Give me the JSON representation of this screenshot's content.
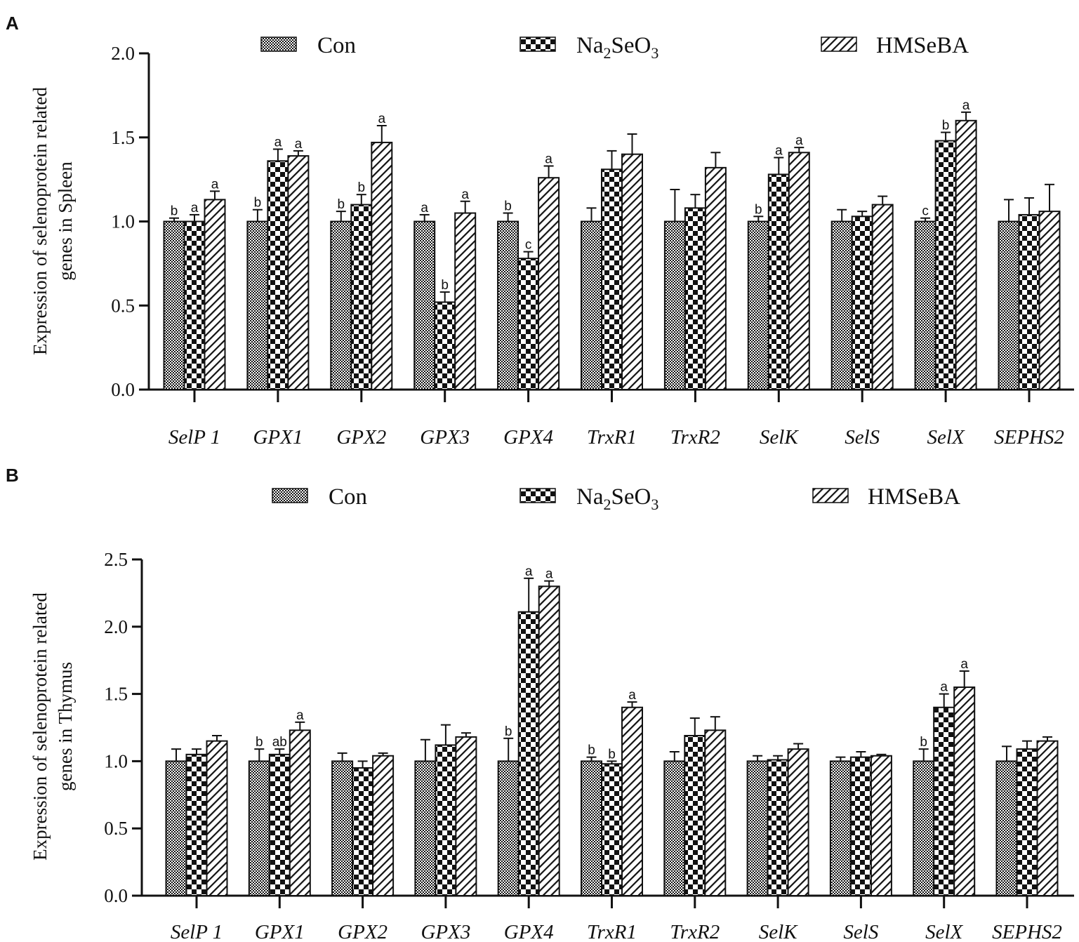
{
  "legend": {
    "con": "Con",
    "na2seo3": {
      "p1": "Na",
      "s1": "2",
      "p2": "SeO",
      "s2": "3",
      "full": "Na2SeO3"
    },
    "hmseba": "HMSeBA"
  },
  "colors": {
    "ink": "#111111",
    "background": "#ffffff"
  },
  "chart_data": [
    {
      "panel": "A",
      "type": "bar",
      "ylabel_line1": "Expression of selenoprotein related",
      "ylabel_line2": "genes in Spleen",
      "ylim": [
        0,
        2.0
      ],
      "yticks": [
        "0.0",
        "0.5",
        "1.0",
        "1.5",
        "2.0"
      ],
      "categories": [
        "SelP 1",
        "GPX1",
        "GPX2",
        "GPX3",
        "GPX4",
        "TrxR1",
        "TrxR2",
        "SelK",
        "SelS",
        "SelX",
        "SEPHS2"
      ],
      "series": [
        {
          "name": "Con",
          "pattern": "check",
          "values": [
            1.0,
            1.0,
            1.0,
            1.0,
            1.0,
            1.0,
            1.0,
            1.0,
            1.0,
            1.0,
            1.0
          ],
          "errors": [
            0.02,
            0.07,
            0.06,
            0.04,
            0.05,
            0.08,
            0.19,
            0.03,
            0.07,
            0.02,
            0.13
          ],
          "labels": [
            "b",
            "b",
            "b",
            "a",
            "b",
            "",
            "",
            "b",
            "",
            "c",
            ""
          ]
        },
        {
          "name": "Na2SeO3",
          "pattern": "checker",
          "values": [
            1.0,
            1.36,
            1.1,
            0.52,
            0.78,
            1.31,
            1.08,
            1.28,
            1.03,
            1.48,
            1.04
          ],
          "errors": [
            0.04,
            0.07,
            0.06,
            0.06,
            0.04,
            0.11,
            0.08,
            0.1,
            0.03,
            0.05,
            0.1
          ],
          "labels": [
            "a",
            "a",
            "b",
            "b",
            "c",
            "",
            "",
            "a",
            "",
            "b",
            ""
          ]
        },
        {
          "name": "HMSeBA",
          "pattern": "hatch",
          "values": [
            1.13,
            1.39,
            1.47,
            1.05,
            1.26,
            1.4,
            1.32,
            1.41,
            1.1,
            1.6,
            1.06
          ],
          "errors": [
            0.05,
            0.03,
            0.1,
            0.07,
            0.07,
            0.12,
            0.09,
            0.03,
            0.05,
            0.05,
            0.16
          ],
          "labels": [
            "a",
            "a",
            "a",
            "a",
            "a",
            "",
            "",
            "a",
            "",
            "a",
            ""
          ]
        }
      ]
    },
    {
      "panel": "B",
      "type": "bar",
      "ylabel_line1": "Expression of selenoprotein related",
      "ylabel_line2": "genes in Thymus",
      "ylim": [
        0,
        2.5
      ],
      "yticks": [
        "0.0",
        "0.5",
        "1.0",
        "1.5",
        "2.0",
        "2.5"
      ],
      "categories": [
        "SelP 1",
        "GPX1",
        "GPX2",
        "GPX3",
        "GPX4",
        "TrxR1",
        "TrxR2",
        "SelK",
        "SelS",
        "SelX",
        "SEPHS2"
      ],
      "series": [
        {
          "name": "Con",
          "pattern": "check",
          "values": [
            1.0,
            1.0,
            1.0,
            1.0,
            1.0,
            1.0,
            1.0,
            1.0,
            1.0,
            1.0,
            1.0
          ],
          "errors": [
            0.09,
            0.09,
            0.06,
            0.16,
            0.17,
            0.03,
            0.07,
            0.04,
            0.03,
            0.09,
            0.11
          ],
          "labels": [
            "",
            "b",
            "",
            "",
            "b",
            "b",
            "",
            "",
            "",
            "b",
            ""
          ]
        },
        {
          "name": "Na2SeO3",
          "pattern": "checker",
          "values": [
            1.05,
            1.05,
            0.95,
            1.12,
            2.11,
            0.98,
            1.19,
            1.01,
            1.03,
            1.4,
            1.09
          ],
          "errors": [
            0.04,
            0.04,
            0.05,
            0.15,
            0.25,
            0.02,
            0.13,
            0.03,
            0.04,
            0.1,
            0.06
          ],
          "labels": [
            "",
            "ab",
            "",
            "",
            "a",
            "b",
            "",
            "",
            "",
            "a",
            ""
          ]
        },
        {
          "name": "HMSeBA",
          "pattern": "hatch",
          "values": [
            1.15,
            1.23,
            1.04,
            1.18,
            2.3,
            1.4,
            1.23,
            1.09,
            1.04,
            1.55,
            1.15
          ],
          "errors": [
            0.04,
            0.06,
            0.02,
            0.03,
            0.04,
            0.04,
            0.1,
            0.04,
            0.01,
            0.12,
            0.03
          ],
          "labels": [
            "",
            "a",
            "",
            "",
            "a",
            "a",
            "",
            "",
            "",
            "a",
            ""
          ]
        }
      ]
    }
  ]
}
